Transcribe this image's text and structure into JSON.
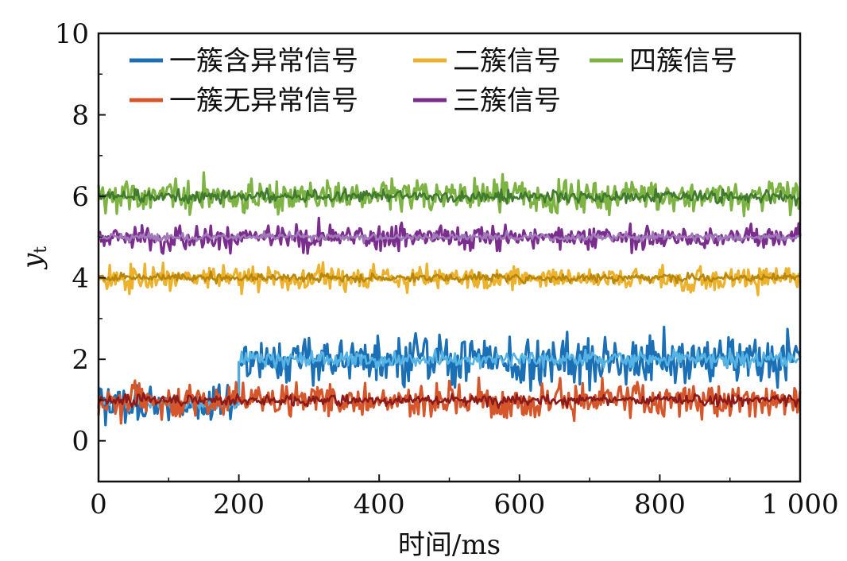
{
  "chart_data": {
    "type": "line",
    "xlabel": "时间/ms",
    "ylabel": "y",
    "ylabel_subscript": "t",
    "xlim": [
      0,
      1000
    ],
    "ylim": [
      -1,
      10
    ],
    "xticks": [
      0,
      200,
      400,
      600,
      800,
      1000
    ],
    "xtick_labels": [
      "0",
      "200",
      "400",
      "600",
      "800",
      "1 000"
    ],
    "yticks": [
      0,
      2,
      4,
      6,
      8,
      10
    ],
    "ytick_labels": [
      "0",
      "2",
      "4",
      "6",
      "8",
      "10"
    ],
    "grid": false,
    "legend_position": "top",
    "series": [
      {
        "name": "一簇含异常信号",
        "color": "#1a6fb5",
        "smooth_color": "#55b4e4",
        "segments": [
          {
            "x_range": [
              0,
              200
            ],
            "mean": 0.9,
            "amplitude": 1.0
          },
          {
            "x_range": [
              200,
              1000
            ],
            "mean": 2.0,
            "amplitude": 1.4
          }
        ]
      },
      {
        "name": "一簇无异常信号",
        "color": "#d4562a",
        "smooth_color": "#8b1a1a",
        "segments": [
          {
            "x_range": [
              0,
              1000
            ],
            "mean": 1.0,
            "amplitude": 1.0
          }
        ]
      },
      {
        "name": "二簇信号",
        "color": "#ecb22e",
        "smooth_color": "#b8860b",
        "segments": [
          {
            "x_range": [
              0,
              1000
            ],
            "mean": 4.0,
            "amplitude": 0.7
          }
        ]
      },
      {
        "name": "三簇信号",
        "color": "#7b2d8e",
        "smooth_color": "#a07ab8",
        "segments": [
          {
            "x_range": [
              0,
              1000
            ],
            "mean": 5.0,
            "amplitude": 0.7
          }
        ]
      },
      {
        "name": "四簇信号",
        "color": "#7cb342",
        "smooth_color": "#3f7a2e",
        "segments": [
          {
            "x_range": [
              0,
              1000
            ],
            "mean": 6.0,
            "amplitude": 1.0
          }
        ]
      }
    ],
    "legend_rows": [
      [
        "一簇含异常信号",
        "二簇信号",
        "四簇信号"
      ],
      [
        "一簇无异常信号",
        "三簇信号"
      ]
    ]
  }
}
